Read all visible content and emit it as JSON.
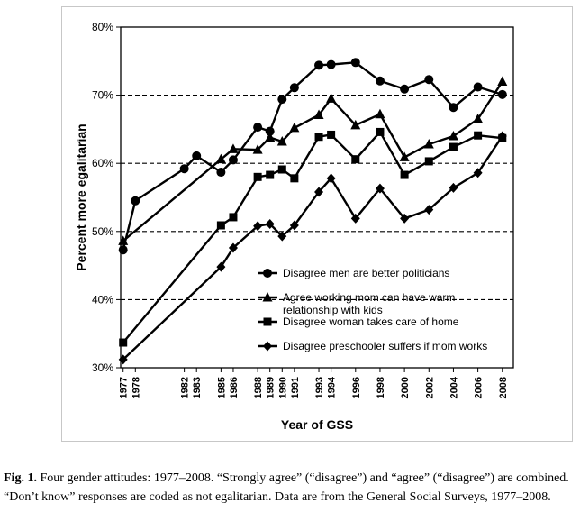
{
  "chart_data": {
    "type": "line",
    "title": "",
    "xlabel": "Year of GSS",
    "ylabel": "Percent more egalitarian",
    "ylim": [
      30,
      80
    ],
    "yticks": [
      "30%",
      "40%",
      "50%",
      "60%",
      "70%",
      "80%"
    ],
    "ytick_values": [
      30,
      40,
      50,
      60,
      70,
      80
    ],
    "dashed_gridlines_at": [
      40,
      50,
      60,
      70
    ],
    "xticks": [
      "1977",
      "1978",
      "1982",
      "1983",
      "1985",
      "1986",
      "1988",
      "1989",
      "1990",
      "1991",
      "1993",
      "1994",
      "1996",
      "1998",
      "2000",
      "2002",
      "2004",
      "2006",
      "2008"
    ],
    "legend_position": "bottom-right inside plot",
    "series": [
      {
        "name": "Disagree men are better politicians",
        "marker": "circle",
        "x": [
          1977,
          1978,
          1982,
          1983,
          1985,
          1986,
          1988,
          1989,
          1990,
          1991,
          1993,
          1994,
          1996,
          1998,
          2000,
          2002,
          2004,
          2006,
          2008
        ],
        "values": [
          47.3,
          54.5,
          59.2,
          61.1,
          58.7,
          60.5,
          65.3,
          64.7,
          69.4,
          71.1,
          74.4,
          74.5,
          74.8,
          72.1,
          70.9,
          72.3,
          68.2,
          71.2,
          70.1
        ]
      },
      {
        "name": "Agree working mom can have warm relationship with kids",
        "marker": "triangle",
        "x": [
          1977,
          1985,
          1986,
          1988,
          1989,
          1990,
          1991,
          1993,
          1994,
          1996,
          1998,
          2000,
          2002,
          2004,
          2006,
          2008
        ],
        "values": [
          48.6,
          60.6,
          62.1,
          62.0,
          63.8,
          63.2,
          65.2,
          67.1,
          69.5,
          65.6,
          67.2,
          60.9,
          62.8,
          64.0,
          66.5,
          72.0
        ]
      },
      {
        "name": "Disagree woman takes care of home",
        "marker": "square",
        "x": [
          1977,
          1985,
          1986,
          1988,
          1989,
          1990,
          1991,
          1993,
          1994,
          1996,
          1998,
          2000,
          2002,
          2004,
          2006,
          2008
        ],
        "values": [
          33.7,
          50.9,
          52.1,
          58.0,
          58.3,
          59.1,
          57.8,
          63.9,
          64.2,
          60.6,
          64.6,
          58.3,
          60.3,
          62.4,
          64.1,
          63.7
        ]
      },
      {
        "name": "Disagree preschooler suffers if mom works",
        "marker": "diamond",
        "x": [
          1977,
          1985,
          1986,
          1988,
          1989,
          1990,
          1991,
          1993,
          1994,
          1996,
          1998,
          2000,
          2002,
          2004,
          2006,
          2008
        ],
        "values": [
          31.2,
          44.8,
          47.6,
          50.8,
          51.1,
          49.3,
          50.9,
          55.8,
          57.8,
          51.9,
          56.3,
          51.9,
          53.2,
          56.4,
          58.6,
          64.0
        ]
      }
    ]
  },
  "caption": {
    "label": "Fig. 1.",
    "text": "Four gender attitudes: 1977–2008. “Strongly agree” (“disagree”) and “agree” (“disagree”) are combined. “Don’t know” responses are coded as not egalitarian. Data are from the General Social Surveys, 1977–2008."
  }
}
